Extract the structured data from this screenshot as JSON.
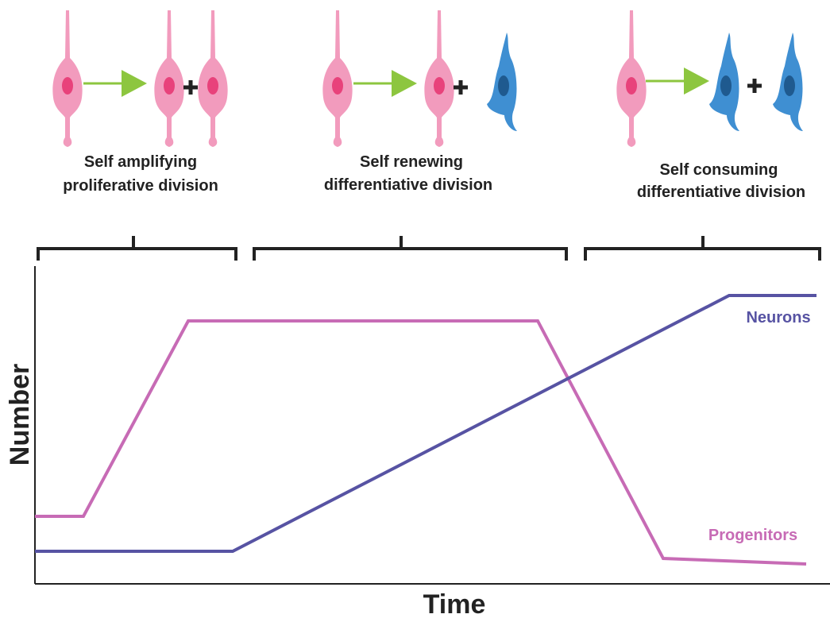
{
  "divisions": [
    {
      "label_lines": [
        "Self amplifying",
        "proliferative division"
      ]
    },
    {
      "label_lines": [
        "Self renewing",
        "differentiative division"
      ]
    },
    {
      "label_lines": [
        "Self consuming",
        "differentiative division"
      ]
    }
  ],
  "axes": {
    "y_label": "Number",
    "x_label": "Time"
  },
  "curves": [
    {
      "label": "Neurons"
    },
    {
      "label": "Progenitors"
    }
  ]
}
